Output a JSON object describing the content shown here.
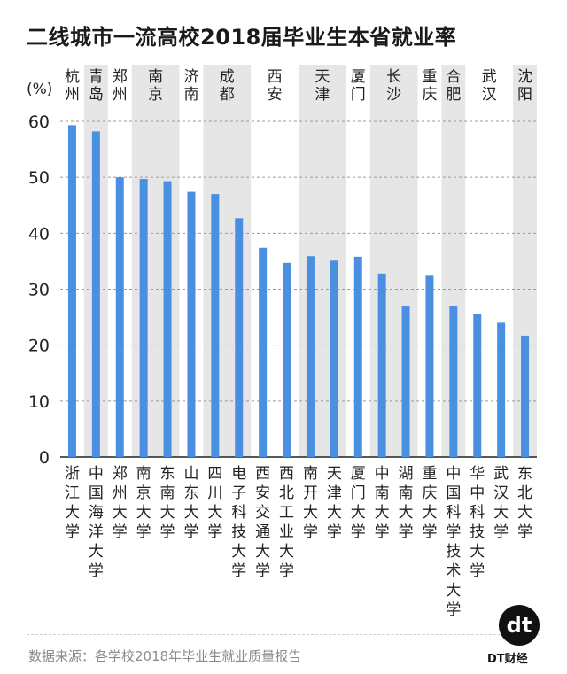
{
  "title": "二线城市一流高校2018届毕业生本省就业率",
  "source": "数据来源：各学校2018年毕业生就业质量报告",
  "brand": {
    "logo_text": "dt",
    "name": "DT财经"
  },
  "colors": {
    "bar": "#4a90e2",
    "band": "#e6e6e6",
    "grid": "#9a9a9a",
    "text": "#222222"
  },
  "chart_data": {
    "type": "bar",
    "title": "二线城市一流高校2018届毕业生本省就业率",
    "ylabel": "(%)",
    "ylim": [
      0,
      60
    ],
    "yticks": [
      0,
      10,
      20,
      30,
      40,
      50,
      60
    ],
    "grid": true,
    "categories": [
      "浙江大学",
      "中国海洋大学",
      "郑州大学",
      "南京大学",
      "东南大学",
      "山东大学",
      "四川大学",
      "电子科技大学",
      "西安交通大学",
      "西北工业大学",
      "南开大学",
      "天津大学",
      "厦门大学",
      "中南大学",
      "湖南大学",
      "重庆大学",
      "中国科学技术大学",
      "华中科技大学",
      "武汉大学",
      "东北大学"
    ],
    "values": [
      59.3,
      58.2,
      50.0,
      49.7,
      49.3,
      47.4,
      47.0,
      42.7,
      37.4,
      34.7,
      35.9,
      35.1,
      35.8,
      32.8,
      27.0,
      32.4,
      27.0,
      25.5,
      24.0,
      21.7
    ],
    "city_groups": [
      {
        "city": "杭州",
        "start": 0,
        "count": 1,
        "shaded": false
      },
      {
        "city": "青岛",
        "start": 1,
        "count": 1,
        "shaded": true
      },
      {
        "city": "郑州",
        "start": 2,
        "count": 1,
        "shaded": false
      },
      {
        "city": "南京",
        "start": 3,
        "count": 2,
        "shaded": true
      },
      {
        "city": "济南",
        "start": 5,
        "count": 1,
        "shaded": false
      },
      {
        "city": "成都",
        "start": 6,
        "count": 2,
        "shaded": true
      },
      {
        "city": "西安",
        "start": 8,
        "count": 2,
        "shaded": false
      },
      {
        "city": "天津",
        "start": 10,
        "count": 2,
        "shaded": true
      },
      {
        "city": "厦门",
        "start": 12,
        "count": 1,
        "shaded": false
      },
      {
        "city": "长沙",
        "start": 13,
        "count": 2,
        "shaded": true
      },
      {
        "city": "重庆",
        "start": 15,
        "count": 1,
        "shaded": false
      },
      {
        "city": "合肥",
        "start": 16,
        "count": 1,
        "shaded": true
      },
      {
        "city": "武汉",
        "start": 17,
        "count": 2,
        "shaded": false
      },
      {
        "city": "沈阳",
        "start": 19,
        "count": 1,
        "shaded": true
      }
    ]
  }
}
